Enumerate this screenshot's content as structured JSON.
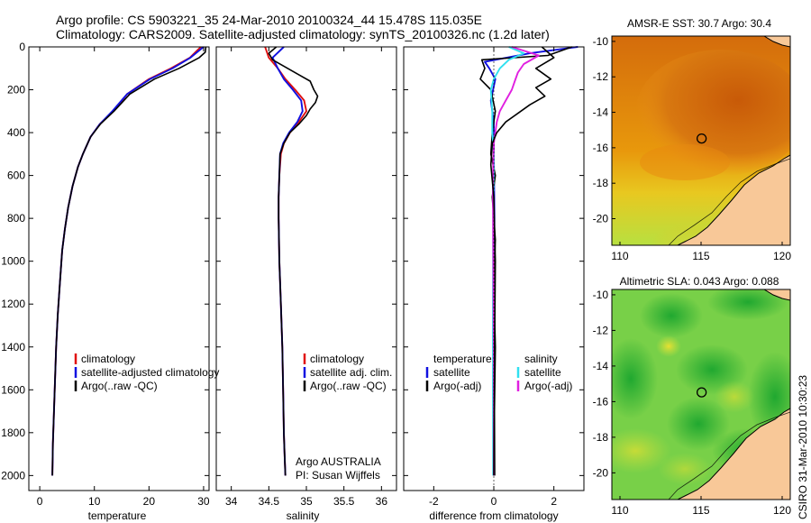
{
  "header": {
    "line1": "Argo profile: CS 5903221_35 24-Mar-2010 20100324_44 15.478S 115.035E",
    "line2": "Climatology: CARS2009. Satellite-adjusted climatology: synTS_20100326.nc (1.2d later)"
  },
  "side_stamp": "CSIRO 31-Mar-2010 10:30:23",
  "colors": {
    "red": "#e01010",
    "blue": "#1010e0",
    "black": "#000000",
    "cyan": "#30e0f0",
    "magenta": "#e020e0",
    "land": "#f8c898"
  },
  "chart_data": [
    {
      "type": "line",
      "id": "temperature",
      "xlabel": "temperature",
      "ylabel": "",
      "xlim": [
        -2,
        31
      ],
      "ylim": [
        2070,
        0
      ],
      "y_reversed": true,
      "xticks": [
        0,
        10,
        20,
        30
      ],
      "yticks": [
        0,
        200,
        400,
        600,
        800,
        1000,
        1200,
        1400,
        1600,
        1800,
        2000
      ],
      "legend": [
        "climatology",
        "satellite-adjusted climatology",
        "Argo(..raw -QC)"
      ],
      "series": [
        {
          "name": "climatology",
          "color": "red",
          "x": [
            29.5,
            28.5,
            27.5,
            24,
            20,
            16,
            13.5,
            11,
            9.3,
            7.9,
            7.0,
            6.0,
            5.2,
            4.6,
            4.1,
            3.7,
            3.3,
            3.0,
            2.8,
            2.6,
            2.4,
            2.3
          ],
          "y": [
            0,
            25,
            50,
            100,
            150,
            220,
            300,
            360,
            420,
            500,
            560,
            650,
            750,
            850,
            950,
            1100,
            1250,
            1400,
            1550,
            1700,
            1850,
            2000
          ]
        },
        {
          "name": "satellite-adjusted climatology",
          "color": "blue",
          "x": [
            30.0,
            28.8,
            27.6,
            24.3,
            20.2,
            16,
            13.3,
            11,
            9.3,
            7.9,
            7.0,
            6.0,
            5.2,
            4.6,
            4.1,
            3.7,
            3.3,
            3.0,
            2.8,
            2.6,
            2.4,
            2.3
          ],
          "y": [
            0,
            25,
            50,
            100,
            150,
            220,
            300,
            360,
            420,
            500,
            560,
            650,
            750,
            850,
            950,
            1100,
            1250,
            1400,
            1550,
            1700,
            1850,
            2000
          ]
        },
        {
          "name": "Argo(..raw -QC)",
          "color": "black",
          "x": [
            30.4,
            30.3,
            29.2,
            25.5,
            21,
            16.5,
            13.6,
            11.1,
            9.3,
            7.9,
            7.0,
            6.0,
            5.2,
            4.6,
            4.1,
            3.7,
            3.3,
            3.0,
            2.8,
            2.6,
            2.4,
            2.3
          ],
          "y": [
            0,
            25,
            50,
            100,
            150,
            220,
            300,
            360,
            420,
            500,
            560,
            650,
            750,
            850,
            950,
            1100,
            1250,
            1400,
            1550,
            1700,
            1850,
            2000
          ]
        }
      ]
    },
    {
      "type": "line",
      "id": "salinity",
      "xlabel": "salinity",
      "ylabel": "",
      "xlim": [
        33.8,
        36.2
      ],
      "ylim": [
        2070,
        0
      ],
      "y_reversed": true,
      "xticks": [
        34,
        34.5,
        35,
        35.5,
        36
      ],
      "xticklabels": [
        "34",
        "34.5",
        "35",
        "35.5",
        "36"
      ],
      "legend": [
        "climatology",
        "satellite adj. clim.",
        "Argo(..raw -QC)"
      ],
      "annotation": [
        "Argo AUSTRALIA",
        "PI: Susan Wijffels"
      ],
      "series": [
        {
          "name": "climatology",
          "color": "red",
          "x": [
            34.45,
            34.5,
            34.62,
            34.72,
            34.85,
            34.97,
            35.0,
            34.9,
            34.78,
            34.7,
            34.66,
            34.64,
            34.63,
            34.63,
            34.64,
            34.66,
            34.68,
            34.69,
            34.7,
            34.71,
            34.72
          ],
          "y": [
            0,
            50,
            100,
            150,
            200,
            250,
            300,
            350,
            400,
            450,
            500,
            600,
            700,
            800,
            1000,
            1200,
            1400,
            1600,
            1800,
            1900,
            2000
          ]
        },
        {
          "name": "satellite adj. clim.",
          "color": "blue",
          "x": [
            34.7,
            34.55,
            34.62,
            34.7,
            34.82,
            34.93,
            34.95,
            34.88,
            34.77,
            34.69,
            34.65,
            34.64,
            34.63,
            34.63,
            34.64,
            34.66,
            34.68,
            34.69,
            34.7,
            34.71,
            34.72
          ],
          "y": [
            0,
            50,
            100,
            150,
            200,
            250,
            300,
            350,
            400,
            450,
            500,
            600,
            700,
            800,
            1000,
            1200,
            1400,
            1600,
            1800,
            1900,
            2000
          ]
        },
        {
          "name": "Argo(..raw -QC)",
          "color": "black",
          "x": [
            34.6,
            34.5,
            34.55,
            34.75,
            34.9,
            35.05,
            35.1,
            35.15,
            35.12,
            35.05,
            35.0,
            34.9,
            34.78,
            34.7,
            34.65,
            34.64,
            34.63,
            34.63,
            34.64,
            34.66,
            34.68,
            34.69,
            34.7,
            34.71,
            34.72
          ],
          "y": [
            0,
            30,
            60,
            100,
            130,
            160,
            200,
            230,
            260,
            290,
            320,
            360,
            400,
            450,
            500,
            600,
            700,
            800,
            1000,
            1200,
            1400,
            1600,
            1800,
            1900,
            2000
          ]
        }
      ]
    },
    {
      "type": "line",
      "id": "difference",
      "xlabel": "difference from climatology",
      "ylabel": "",
      "xlim": [
        -3,
        3
      ],
      "ylim": [
        2070,
        0
      ],
      "y_reversed": true,
      "xticks": [
        -2,
        0,
        2
      ],
      "legend_left_title": "temperature",
      "legend_right_title": "salinity",
      "legend_left": [
        "satellite",
        "Argo(-adj)"
      ],
      "legend_right": [
        "satellite",
        "Argo(-adj)"
      ],
      "series": [
        {
          "name": "satellite (temperature)",
          "color": "blue",
          "x": [
            2.8,
            1.2,
            -0.3,
            -0.15,
            0.05,
            -0.1,
            0.0,
            0.0,
            0.02,
            0.0,
            0.0,
            0.0
          ],
          "y": [
            0,
            30,
            70,
            100,
            150,
            250,
            350,
            500,
            800,
            1200,
            1600,
            2000
          ]
        },
        {
          "name": "Argo(-adj) (temperature)",
          "color": "black",
          "x": [
            2.6,
            1.8,
            -0.4,
            -0.3,
            -0.45,
            -0.1,
            0.05,
            -0.05,
            -0.1,
            0.05,
            -0.05,
            0.05,
            0.0,
            0.05,
            0.02,
            0.03
          ],
          "y": [
            0,
            40,
            60,
            100,
            150,
            200,
            300,
            400,
            500,
            600,
            700,
            900,
            1100,
            1400,
            1700,
            2000
          ]
        },
        {
          "name": "satellite (salinity)",
          "color": "cyan",
          "x": [
            0.5,
            1.0,
            0.5,
            0.2,
            0.0,
            -0.1,
            -0.05,
            -0.05,
            0.0,
            -0.02,
            -0.03,
            -0.03,
            -0.02
          ],
          "y": [
            0,
            30,
            60,
            100,
            150,
            200,
            300,
            400,
            500,
            800,
            1200,
            1600,
            2000
          ]
        },
        {
          "name": "Argo(-adj) (salinity)",
          "color": "magenta",
          "x": [
            0.6,
            1.5,
            1.0,
            0.8,
            0.7,
            0.6,
            0.4,
            0.2,
            0.1,
            0.0,
            -0.03,
            -0.02,
            0.0,
            0.0
          ],
          "y": [
            0,
            40,
            80,
            120,
            160,
            200,
            250,
            300,
            350,
            450,
            600,
            900,
            1400,
            2000
          ]
        },
        {
          "name": "Argo(-adj) salinity difference",
          "color": "black",
          "x": [
            1.6,
            2.0,
            1.4,
            1.9,
            1.4,
            1.7,
            1.2,
            0.8,
            0.4,
            0.1,
            -0.05,
            -0.1,
            0.0,
            0.05,
            0.02,
            0.0
          ],
          "y": [
            0,
            50,
            100,
            150,
            190,
            230,
            270,
            310,
            350,
            400,
            450,
            550,
            700,
            1000,
            1500,
            2000
          ]
        }
      ]
    },
    {
      "type": "heatmap",
      "id": "sst_map",
      "title": "AMSR-E SST: 30.7  Argo: 30.4",
      "xlim": [
        109.5,
        120.5
      ],
      "ylim": [
        -21.5,
        -9.7
      ],
      "xticks": [
        110,
        115,
        120
      ],
      "yticks": [
        -10,
        -12,
        -14,
        -16,
        -18,
        -20
      ],
      "marker": {
        "lon": 115.035,
        "lat": -15.478
      }
    },
    {
      "type": "heatmap",
      "id": "sla_map",
      "title": "Altimetric SLA: 0.043  Argo: 0.088",
      "xlim": [
        109.5,
        120.5
      ],
      "ylim": [
        -21.5,
        -9.7
      ],
      "xticks": [
        110,
        115,
        120
      ],
      "yticks": [
        -10,
        -12,
        -14,
        -16,
        -18,
        -20
      ],
      "marker": {
        "lon": 115.035,
        "lat": -15.478
      }
    }
  ]
}
